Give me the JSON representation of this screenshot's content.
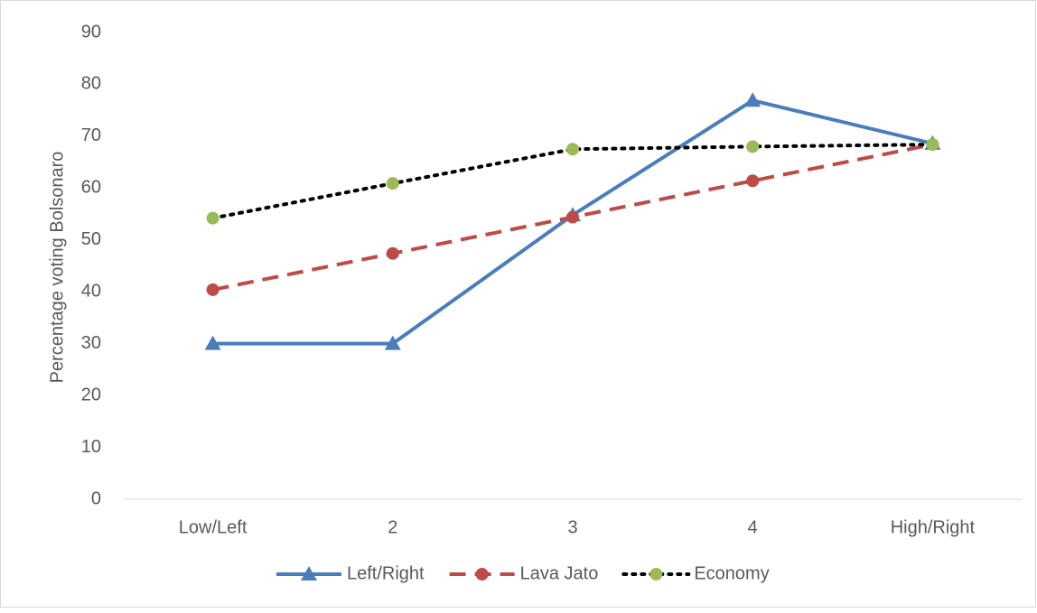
{
  "chart_data": {
    "type": "line",
    "y_label": "Percentage voting Bolsonaro",
    "categories": [
      "Low/Left",
      "2",
      "3",
      "4",
      "High/Right"
    ],
    "series": [
      {
        "name": "Left/Right",
        "color": "#4a7ebb",
        "dash": "solid",
        "marker": "triangle",
        "values": [
          30,
          30,
          54.8,
          76.9,
          68.6
        ]
      },
      {
        "name": "Lava Jato",
        "color": "#be4b48",
        "dash": "dashed",
        "marker": "circle",
        "values": [
          40.4,
          47.4,
          54.4,
          61.4,
          68.4
        ]
      },
      {
        "name": "Economy",
        "color": "#000000",
        "marker_color": "#9bbb59",
        "dash": "dotted",
        "marker": "circle",
        "values": [
          54.2,
          60.9,
          67.5,
          68,
          68.4
        ]
      }
    ],
    "ylim": [
      0,
      90
    ],
    "yticks": [
      0,
      10,
      20,
      30,
      40,
      50,
      60,
      70,
      80,
      90
    ],
    "grid": false,
    "legend": "bottom"
  }
}
